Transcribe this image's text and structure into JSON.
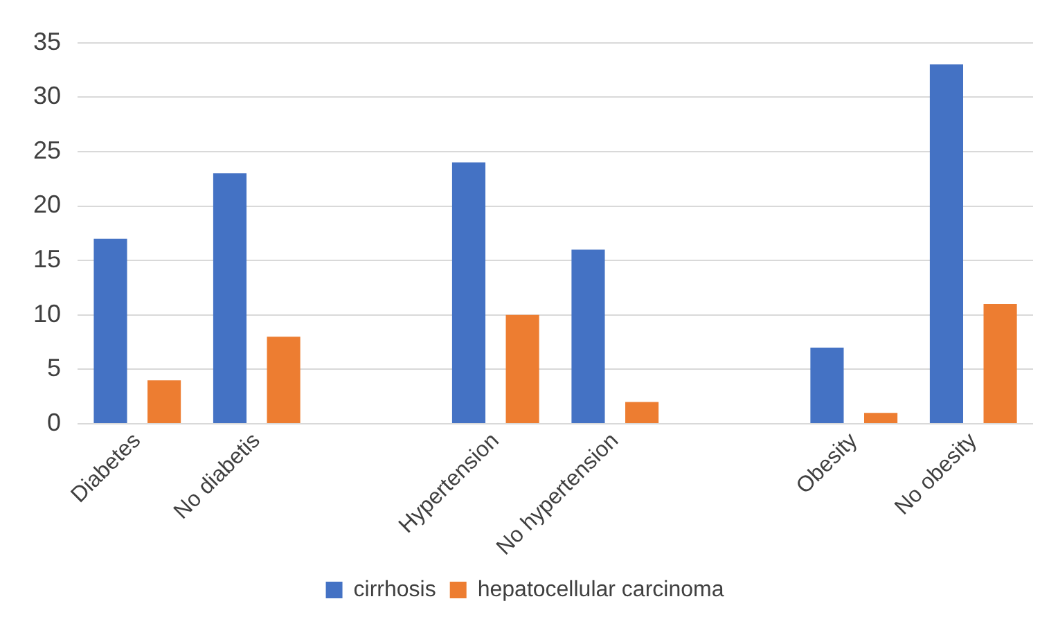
{
  "chart_data": {
    "type": "bar",
    "categories": [
      "Diabetes",
      "No diabetis",
      null,
      "Hypertension",
      "No hypertension",
      null,
      "Obesity",
      "No obesity"
    ],
    "series": [
      {
        "name": "cirrhosis",
        "color": "#4472c4",
        "values": [
          17,
          23,
          null,
          24,
          16,
          null,
          7,
          33
        ]
      },
      {
        "name": "hepatocellular carcinoma",
        "color": "#ed7d31",
        "values": [
          4,
          8,
          null,
          10,
          2,
          null,
          1,
          11
        ]
      }
    ],
    "ylim": [
      0,
      35
    ],
    "yticks": [
      0,
      5,
      10,
      15,
      20,
      25,
      30,
      35
    ],
    "grid": "y",
    "legend": "bottom"
  }
}
